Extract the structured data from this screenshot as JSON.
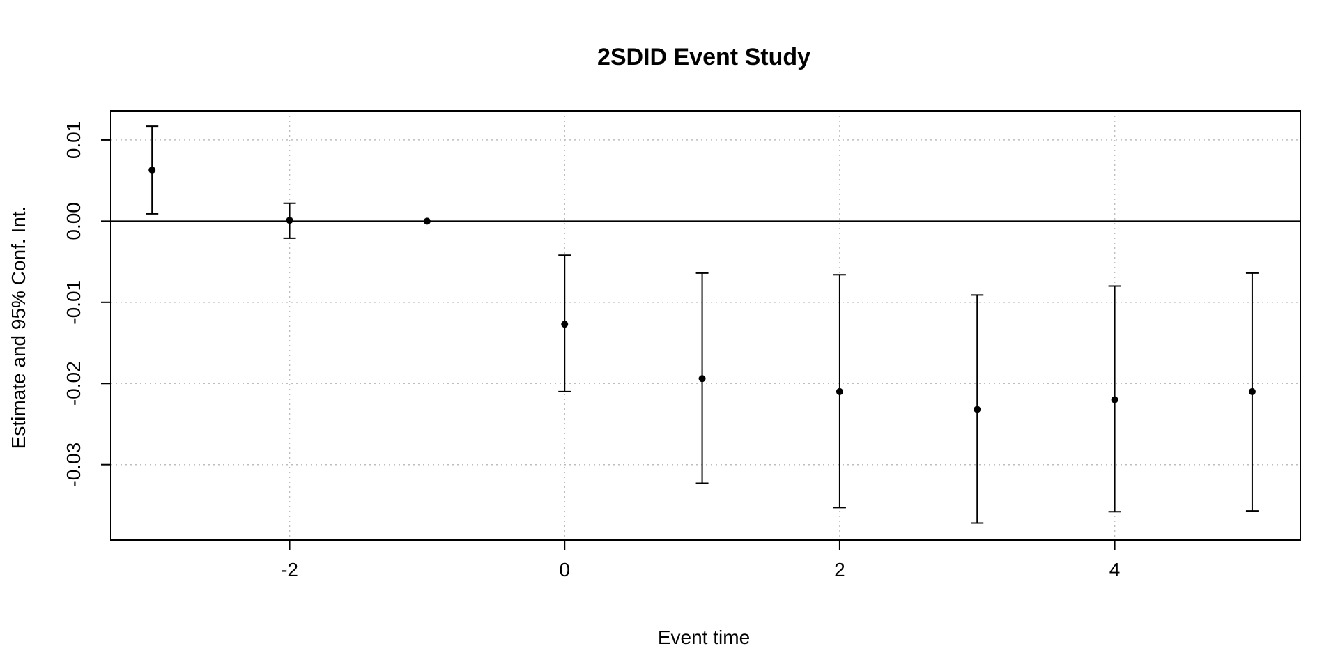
{
  "chart_data": {
    "type": "scatter",
    "title": "2SDID Event Study",
    "xlabel": "Event time",
    "ylabel": "Estimate and 95% Conf. Int.",
    "xlim": [
      -3.3,
      5.35
    ],
    "ylim": [
      -0.0393,
      0.0136
    ],
    "x_ticks": [
      -2,
      0,
      2,
      4
    ],
    "x_tick_labels": [
      "-2",
      "0",
      "2",
      "4"
    ],
    "y_ticks": [
      0.01,
      0.0,
      -0.01,
      -0.02,
      -0.03
    ],
    "y_tick_labels": [
      "0.01",
      "0.00",
      "-0.01",
      "-0.02",
      "-0.03"
    ],
    "grid": true,
    "reference_line_y": 0,
    "series": [
      {
        "points": [
          {
            "x": -3,
            "estimate": 0.0063,
            "ci_low": 0.0009,
            "ci_high": 0.0117
          },
          {
            "x": -2,
            "estimate": 0.0001,
            "ci_low": -0.0021,
            "ci_high": 0.0022
          },
          {
            "x": -1,
            "estimate": 0.0,
            "ci_low": 0.0,
            "ci_high": 0.0
          },
          {
            "x": 0,
            "estimate": -0.0127,
            "ci_low": -0.021,
            "ci_high": -0.0042
          },
          {
            "x": 1,
            "estimate": -0.0194,
            "ci_low": -0.0323,
            "ci_high": -0.0064
          },
          {
            "x": 2,
            "estimate": -0.021,
            "ci_low": -0.0353,
            "ci_high": -0.0066
          },
          {
            "x": 3,
            "estimate": -0.0232,
            "ci_low": -0.0372,
            "ci_high": -0.0091
          },
          {
            "x": 4,
            "estimate": -0.022,
            "ci_low": -0.0358,
            "ci_high": -0.008
          },
          {
            "x": 5,
            "estimate": -0.021,
            "ci_low": -0.0357,
            "ci_high": -0.0064
          }
        ]
      }
    ],
    "colors": {
      "points": "#000000",
      "grid": "#bdbdbd"
    }
  }
}
